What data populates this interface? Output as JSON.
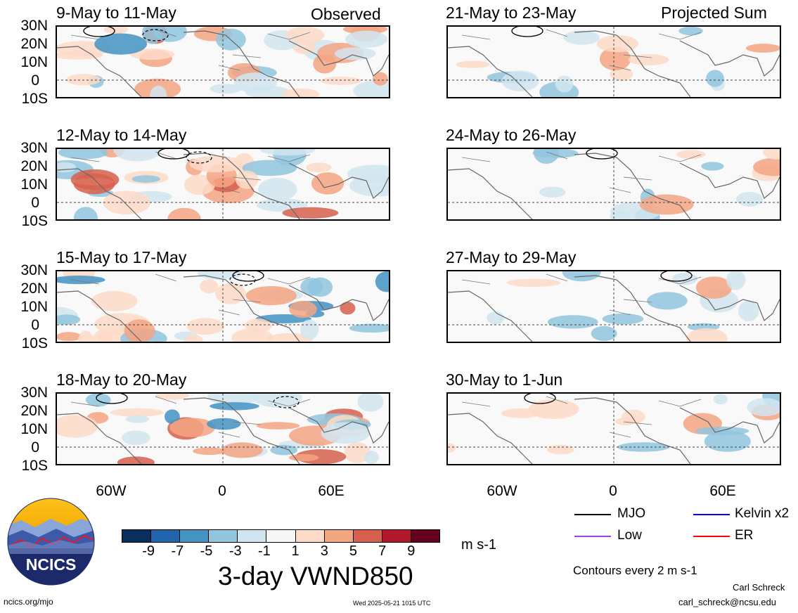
{
  "headers": {
    "observed": "Observed",
    "projected": "Projected Sum"
  },
  "panels": [
    {
      "title": "9-May to 11-May"
    },
    {
      "title": "21-May to 23-May"
    },
    {
      "title": "12-May to 14-May"
    },
    {
      "title": "24-May to 26-May"
    },
    {
      "title": "15-May to 17-May"
    },
    {
      "title": "27-May to 29-May"
    },
    {
      "title": "18-May to 20-May"
    },
    {
      "title": "30-May to 1-Jun"
    }
  ],
  "lat_labels": [
    "30N",
    "20N",
    "10N",
    "0",
    "10S"
  ],
  "lon_labels": [
    "60W",
    "0",
    "60E"
  ],
  "colorbar": {
    "colors": [
      "#0a2f5f",
      "#2166ac",
      "#4393c3",
      "#92c5de",
      "#d1e5f0",
      "#f7f7f7",
      "#fddbc7",
      "#f4a582",
      "#d6604d",
      "#b2182b",
      "#67001f"
    ],
    "labels": [
      "-9",
      "-7",
      "-5",
      "-3",
      "-1",
      "1",
      "3",
      "5",
      "7",
      "9"
    ],
    "units": "m s-1"
  },
  "main_title": "3-day VWND850",
  "legend": {
    "items": [
      {
        "label": "MJO",
        "color": "#000000"
      },
      {
        "label": "Kelvin x2",
        "color": "#0000ff"
      },
      {
        "label": "Low",
        "color": "#a040e0"
      },
      {
        "label": "ER",
        "color": "#ff0000"
      }
    ],
    "contours_note": "Contours every 2 m s-1"
  },
  "footer": {
    "site": "ncics.org/mjo",
    "timestamp": "Wed 2025-05-21 1015 UTC",
    "author": "Carl Schreck",
    "email": "carl_schreck@ncsu.edu"
  },
  "logo": {
    "text": "NCICS"
  }
}
